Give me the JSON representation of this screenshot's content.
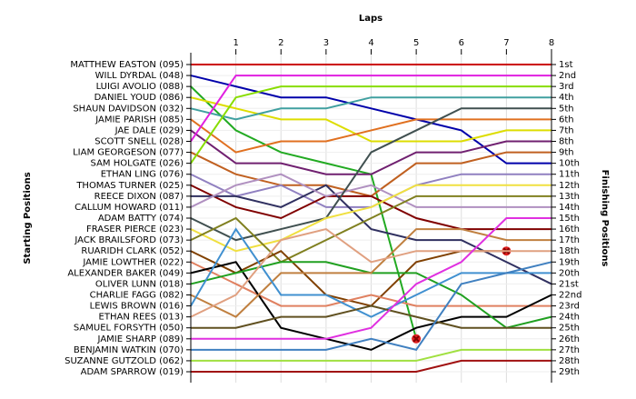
{
  "chart_data": {
    "type": "line",
    "x_title": "Laps",
    "y_title": "Starting Positions",
    "y2_title": "Finishing Positions",
    "x": [
      0,
      1,
      2,
      3,
      4,
      5,
      6,
      7,
      8
    ],
    "xlim": [
      0,
      8
    ],
    "xticks": [
      1,
      2,
      3,
      4,
      5,
      6,
      7,
      8
    ],
    "ylim": [
      1,
      29
    ],
    "y_inverted": true,
    "grid": true,
    "finishing_positions": [
      "1st",
      "2nd",
      "3rd",
      "4th",
      "5th",
      "6th",
      "7th",
      "8th",
      "9th",
      "10th",
      "11th",
      "12th",
      "13th",
      "14th",
      "15th",
      "16th",
      "17th",
      "18th",
      "19th",
      "20th",
      "21st",
      "22nd",
      "23rd",
      "24th",
      "25th",
      "26th",
      "27th",
      "28th",
      "29th"
    ],
    "series": [
      {
        "name": "MATTHEW EASTON (095)",
        "color": "#cc0000",
        "values": [
          1,
          1,
          1,
          1,
          1,
          1,
          1,
          1,
          1
        ]
      },
      {
        "name": "WILL DYRDAL (048)",
        "color": "#0000aa",
        "values": [
          2,
          3,
          4,
          4,
          5,
          6,
          7,
          10,
          10
        ]
      },
      {
        "name": "LUIGI AVOLIO (088)",
        "color": "#22aa22",
        "values": [
          3,
          7,
          9,
          10,
          11,
          26,
          null,
          null,
          null
        ],
        "end_marker": "x"
      },
      {
        "name": "DANIEL YOUD (086)",
        "color": "#dddd00",
        "values": [
          4,
          5,
          6,
          6,
          8,
          8,
          8,
          7,
          7
        ]
      },
      {
        "name": "SHAUN DAVIDSON (032)",
        "color": "#40a0a0",
        "values": [
          5,
          6,
          5,
          5,
          4,
          4,
          4,
          4,
          4
        ]
      },
      {
        "name": "JAMIE PARISH (085)",
        "color": "#e07020",
        "values": [
          6,
          9,
          8,
          8,
          7,
          6,
          6,
          6,
          6
        ]
      },
      {
        "name": "JAE DALE (029)",
        "color": "#702070",
        "values": [
          7,
          10,
          10,
          11,
          11,
          9,
          9,
          8,
          8
        ]
      },
      {
        "name": "SCOTT SNELL (028)",
        "color": "#e020e0",
        "values": [
          8,
          2,
          2,
          2,
          2,
          2,
          2,
          2,
          2
        ]
      },
      {
        "name": "LIAM GEORGESON (077)",
        "color": "#c06020",
        "values": [
          9,
          11,
          12,
          12,
          13,
          10,
          10,
          9,
          9
        ]
      },
      {
        "name": "SAM HOLGATE (026)",
        "color": "#88dd00",
        "values": [
          10,
          4,
          3,
          3,
          3,
          3,
          3,
          3,
          3
        ]
      },
      {
        "name": "ETHAN LING (076)",
        "color": "#9080c0",
        "values": [
          11,
          13,
          12,
          14,
          14,
          12,
          11,
          11,
          11
        ]
      },
      {
        "name": "THOMAS TURNER (025)",
        "color": "#800000",
        "values": [
          12,
          14,
          15,
          13,
          13,
          15,
          16,
          16,
          16
        ]
      },
      {
        "name": "REECE DIXON (087)",
        "color": "#303060",
        "values": [
          13,
          13,
          14,
          12,
          16,
          17,
          17,
          19,
          21
        ]
      },
      {
        "name": "CALLUM HOWARD (011)",
        "color": "#b090c0",
        "values": [
          14,
          12,
          11,
          13,
          12,
          14,
          14,
          14,
          14
        ]
      },
      {
        "name": "ADAM BATTY (074)",
        "color": "#405050",
        "values": [
          15,
          17,
          16,
          15,
          9,
          7,
          5,
          5,
          5
        ]
      },
      {
        "name": "FRASER PIERCE (023)",
        "color": "#f0e040",
        "values": [
          16,
          18,
          17,
          15,
          14,
          12,
          12,
          12,
          12
        ]
      },
      {
        "name": "JACK BRAILSFORD (073)",
        "color": "#808020",
        "values": [
          17,
          15,
          19,
          17,
          15,
          13,
          13,
          13,
          13
        ]
      },
      {
        "name": "RUARIDH CLARK (052)",
        "color": "#804000",
        "values": [
          18,
          20,
          18,
          22,
          23,
          19,
          18,
          18,
          null
        ],
        "end_marker": "x"
      },
      {
        "name": "JAMIE LOWTHER (022)",
        "color": "#e08060",
        "values": [
          19,
          21,
          23,
          23,
          22,
          23,
          23,
          23,
          23
        ]
      },
      {
        "name": "ALEXANDER BAKER (049)",
        "color": "#000000",
        "values": [
          20,
          19,
          25,
          26,
          27,
          25,
          24,
          24,
          22
        ]
      },
      {
        "name": "OLIVER LUNN (018)",
        "color": "#20a020",
        "values": [
          21,
          20,
          19,
          19,
          20,
          20,
          22,
          25,
          24
        ]
      },
      {
        "name": "CHARLIE FAGG (082)",
        "color": "#c08040",
        "values": [
          22,
          24,
          20,
          20,
          20,
          16,
          16,
          17,
          17
        ]
      },
      {
        "name": "LEWIS BROWN (016)",
        "color": "#4090d0",
        "values": [
          23,
          16,
          22,
          22,
          24,
          22,
          20,
          20,
          20
        ]
      },
      {
        "name": "ETHAN REES (013)",
        "color": "#e0a080",
        "values": [
          24,
          22,
          17,
          16,
          19,
          18,
          18,
          18,
          18
        ]
      },
      {
        "name": "SAMUEL FORSYTH (050)",
        "color": "#605020",
        "values": [
          25,
          25,
          24,
          24,
          23,
          24,
          25,
          25,
          25
        ]
      },
      {
        "name": "JAMIE SHARP (089)",
        "color": "#e030e0",
        "values": [
          26,
          26,
          26,
          26,
          25,
          21,
          19,
          15,
          15
        ]
      },
      {
        "name": "BENJAMIN WATKIN (070)",
        "color": "#4080c0",
        "values": [
          27,
          27,
          27,
          27,
          26,
          27,
          21,
          20,
          19
        ]
      },
      {
        "name": "SUZANNE GUTZOLD (062)",
        "color": "#a0e040",
        "values": [
          28,
          28,
          28,
          28,
          28,
          28,
          27,
          27,
          27
        ]
      },
      {
        "name": "ADAM SPARROW (019)",
        "color": "#a01010",
        "values": [
          29,
          29,
          29,
          29,
          29,
          29,
          28,
          28,
          28
        ]
      }
    ]
  }
}
